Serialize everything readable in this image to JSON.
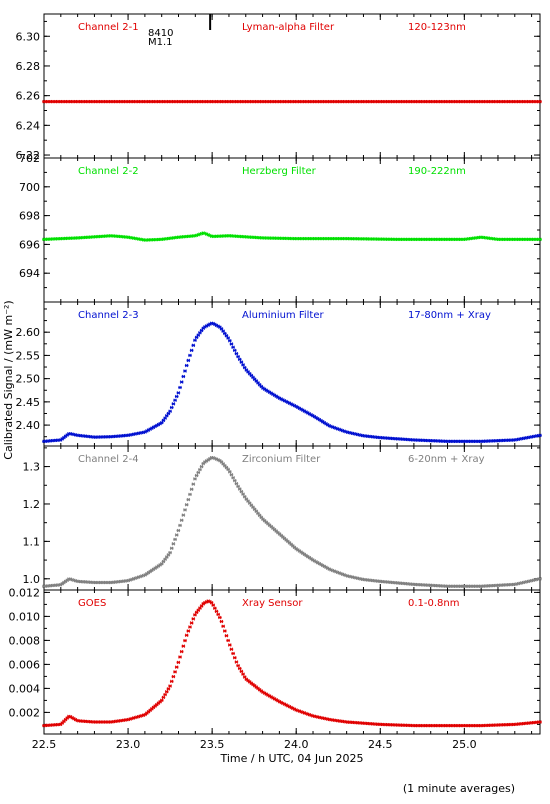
{
  "figure": {
    "ylabel": "Calibrated Signal / (mW m⁻²)",
    "xlabel": "Time / h UTC, 04 Jun 2025",
    "footnote": "(1 minute averages)",
    "event_marker": {
      "x": 23.5,
      "labels": [
        "8410",
        "M1.1"
      ]
    }
  },
  "chart_data": [
    {
      "type": "scatter",
      "channel": "Channel 2-1",
      "filter": "Lyman-alpha Filter",
      "band": "120-123nm",
      "color": "#e00000",
      "xlim": [
        22.5,
        25.45
      ],
      "ylim": [
        6.218,
        6.315
      ],
      "yticks": [
        6.22,
        6.24,
        6.26,
        6.28,
        6.3
      ],
      "ytick_labels": [
        "6.22",
        "6.24",
        "6.26",
        "6.28",
        "6.30"
      ],
      "series": [
        {
          "x": [
            22.5,
            23.0,
            23.5,
            24.0,
            24.5,
            25.0,
            25.45
          ],
          "y": [
            6.256,
            6.256,
            6.256,
            6.256,
            6.256,
            6.256,
            6.256
          ]
        }
      ]
    },
    {
      "type": "scatter",
      "channel": "Channel 2-2",
      "filter": "Herzberg Filter",
      "band": "190-222nm",
      "color": "#00e000",
      "xlim": [
        22.5,
        25.45
      ],
      "ylim": [
        692,
        702
      ],
      "yticks": [
        694,
        696,
        698,
        700,
        702
      ],
      "ytick_labels": [
        "694",
        "696",
        "698",
        "700",
        "702"
      ],
      "series": [
        {
          "x": [
            22.5,
            22.7,
            22.9,
            23.0,
            23.1,
            23.2,
            23.3,
            23.4,
            23.45,
            23.5,
            23.6,
            23.8,
            24.0,
            24.3,
            24.6,
            25.0,
            25.1,
            25.2,
            25.45
          ],
          "y": [
            696.35,
            696.45,
            696.6,
            696.5,
            696.3,
            696.35,
            696.5,
            696.6,
            696.8,
            696.55,
            696.6,
            696.45,
            696.4,
            696.4,
            696.35,
            696.35,
            696.5,
            696.35,
            696.35
          ]
        }
      ]
    },
    {
      "type": "scatter",
      "channel": "Channel 2-3",
      "filter": "Aluminium Filter",
      "band": "17-80nm + Xray",
      "color": "#0010d0",
      "xlim": [
        22.5,
        25.45
      ],
      "ylim": [
        2.355,
        2.665
      ],
      "yticks": [
        2.4,
        2.45,
        2.5,
        2.55,
        2.6
      ],
      "ytick_labels": [
        "2.40",
        "2.45",
        "2.50",
        "2.55",
        "2.60"
      ],
      "series": [
        {
          "x": [
            22.5,
            22.6,
            22.65,
            22.7,
            22.8,
            22.9,
            23.0,
            23.1,
            23.2,
            23.25,
            23.3,
            23.35,
            23.4,
            23.45,
            23.5,
            23.55,
            23.6,
            23.65,
            23.7,
            23.8,
            23.9,
            24.0,
            24.1,
            24.2,
            24.3,
            24.4,
            24.5,
            24.7,
            24.9,
            25.1,
            25.3,
            25.45
          ],
          "y": [
            2.365,
            2.368,
            2.382,
            2.378,
            2.374,
            2.375,
            2.378,
            2.385,
            2.405,
            2.43,
            2.47,
            2.53,
            2.585,
            2.61,
            2.62,
            2.61,
            2.585,
            2.55,
            2.52,
            2.48,
            2.458,
            2.44,
            2.42,
            2.398,
            2.385,
            2.377,
            2.373,
            2.368,
            2.365,
            2.365,
            2.368,
            2.378
          ]
        }
      ]
    },
    {
      "type": "scatter",
      "channel": "Channel 2-4",
      "filter": "Zirconium Filter",
      "band": "6-20nm + Xray",
      "color": "#808080",
      "xlim": [
        22.5,
        25.45
      ],
      "ylim": [
        0.97,
        1.355
      ],
      "yticks": [
        1.0,
        1.1,
        1.2,
        1.3
      ],
      "ytick_labels": [
        "1.0",
        "1.1",
        "1.2",
        "1.3"
      ],
      "series": [
        {
          "x": [
            22.5,
            22.6,
            22.65,
            22.7,
            22.8,
            22.9,
            23.0,
            23.1,
            23.2,
            23.25,
            23.3,
            23.35,
            23.4,
            23.45,
            23.5,
            23.55,
            23.6,
            23.65,
            23.7,
            23.8,
            23.9,
            24.0,
            24.1,
            24.2,
            24.3,
            24.4,
            24.5,
            24.7,
            24.9,
            25.1,
            25.3,
            25.45
          ],
          "y": [
            0.98,
            0.984,
            1.0,
            0.993,
            0.99,
            0.99,
            0.995,
            1.01,
            1.04,
            1.07,
            1.13,
            1.2,
            1.27,
            1.31,
            1.325,
            1.315,
            1.29,
            1.25,
            1.215,
            1.16,
            1.12,
            1.08,
            1.05,
            1.025,
            1.008,
            0.998,
            0.993,
            0.985,
            0.98,
            0.98,
            0.985,
            1.0
          ]
        }
      ]
    },
    {
      "type": "scatter",
      "channel": "GOES",
      "filter": "Xray Sensor",
      "band": "0.1-0.8nm",
      "color": "#e00000",
      "xlim": [
        22.5,
        25.45
      ],
      "ylim": [
        0.0002,
        0.0122
      ],
      "yticks": [
        0.002,
        0.004,
        0.006,
        0.008,
        0.01,
        0.012
      ],
      "ytick_labels": [
        "0.002",
        "0.004",
        "0.006",
        "0.008",
        "0.010",
        "0.012"
      ],
      "series": [
        {
          "x": [
            22.5,
            22.6,
            22.65,
            22.7,
            22.8,
            22.9,
            23.0,
            23.1,
            23.2,
            23.25,
            23.3,
            23.35,
            23.4,
            23.45,
            23.48,
            23.5,
            23.55,
            23.6,
            23.65,
            23.7,
            23.8,
            23.9,
            24.0,
            24.1,
            24.2,
            24.3,
            24.5,
            24.7,
            24.9,
            25.1,
            25.3,
            25.45
          ],
          "y": [
            0.0009,
            0.001,
            0.0017,
            0.0013,
            0.0012,
            0.0012,
            0.0014,
            0.0018,
            0.003,
            0.0042,
            0.0062,
            0.0085,
            0.0102,
            0.0111,
            0.0113,
            0.0111,
            0.0098,
            0.0078,
            0.006,
            0.0048,
            0.0037,
            0.0029,
            0.0022,
            0.0017,
            0.0014,
            0.0012,
            0.001,
            0.0009,
            0.0009,
            0.0009,
            0.001,
            0.0012
          ]
        }
      ]
    }
  ],
  "x_axis": {
    "ticks": [
      22.5,
      23.0,
      23.5,
      24.0,
      24.5,
      25.0
    ],
    "tick_labels": [
      "22.5",
      "23.0",
      "23.5",
      "24.0",
      "24.5",
      "25.0"
    ]
  }
}
